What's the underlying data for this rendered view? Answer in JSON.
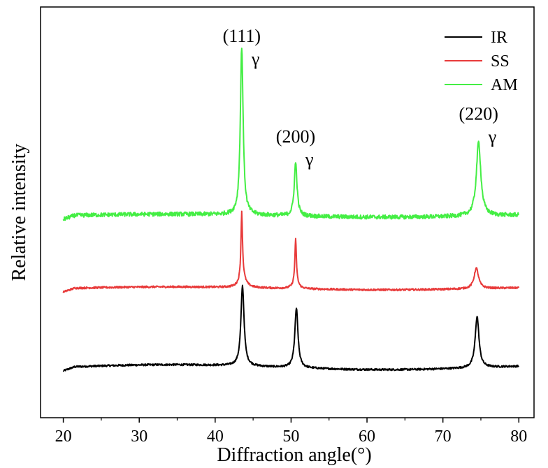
{
  "chart_data": {
    "type": "line",
    "title": "",
    "xlabel": "Diffraction angle(°)",
    "ylabel": "Relative intensity",
    "xlim": [
      17,
      82
    ],
    "x_ticks": [
      20,
      30,
      40,
      50,
      60,
      70,
      80
    ],
    "y_ticks": [],
    "ylim": [
      0,
      100
    ],
    "grid": false,
    "legend_position": "top-right",
    "series": [
      {
        "name": "IR",
        "color": "#000000",
        "baseline": 12.3,
        "peaks": [
          {
            "x": 43.6,
            "height": 19.5,
            "width": 0.25
          },
          {
            "x": 50.7,
            "height": 14.5,
            "width": 0.25
          },
          {
            "x": 74.5,
            "height": 12.5,
            "width": 0.3
          }
        ]
      },
      {
        "name": "SS",
        "color": "#e83a3a",
        "baseline": 31.5,
        "peaks": [
          {
            "x": 43.5,
            "height": 16.0,
            "width": 0.12
          },
          {
            "x": 43.6,
            "height": 2.5,
            "width": 0.5
          },
          {
            "x": 50.6,
            "height": 10.5,
            "width": 0.12
          },
          {
            "x": 50.6,
            "height": 1.5,
            "width": 0.4
          },
          {
            "x": 74.4,
            "height": 5.0,
            "width": 0.35
          }
        ]
      },
      {
        "name": "AM",
        "color": "#44ee44",
        "baseline": 49.2,
        "peaks": [
          {
            "x": 43.5,
            "height": 41.0,
            "width": 0.22
          },
          {
            "x": 50.6,
            "height": 13.0,
            "width": 0.22
          },
          {
            "x": 74.7,
            "height": 18.0,
            "width": 0.35
          }
        ]
      }
    ],
    "annotations": [
      {
        "label": "(111)",
        "gamma": "γ",
        "x": 43.5,
        "y": 91.5
      },
      {
        "label": "(200)",
        "gamma": "γ",
        "x": 50.6,
        "y": 67.0
      },
      {
        "label": "(220)",
        "gamma": "γ",
        "x": 74.7,
        "y": 72.5
      }
    ]
  }
}
